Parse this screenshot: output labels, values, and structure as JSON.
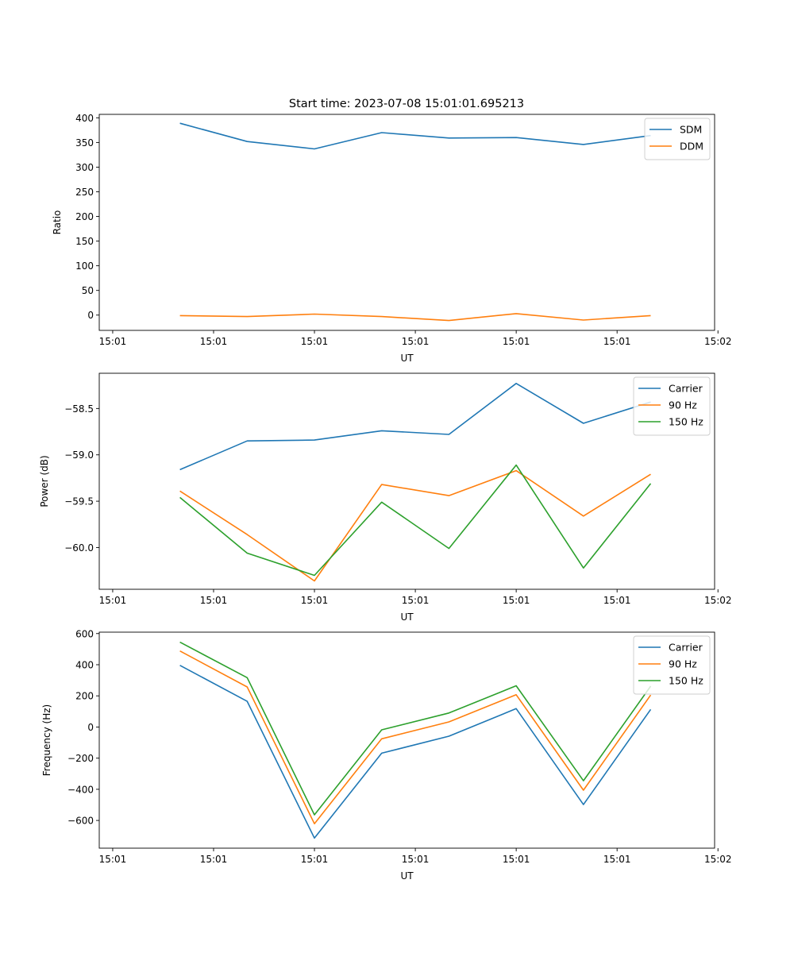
{
  "figure": {
    "title": "Start time: 2023-07-08 15:01:01.695213"
  },
  "chart_data": [
    {
      "type": "line",
      "title": "Start time: 2023-07-08 15:01:01.695213",
      "xlabel": "UT",
      "ylabel": "Ratio",
      "x_index": [
        1,
        2,
        3,
        4,
        5,
        6,
        7,
        8
      ],
      "x_range": [
        -0.2,
        8.95
      ],
      "x_ticks": [
        0,
        1.5,
        3,
        4.5,
        6,
        7.5,
        9
      ],
      "x_tick_labels": [
        "15:01",
        "15:01",
        "15:01",
        "15:01",
        "15:01",
        "15:01",
        "15:02"
      ],
      "ylim": [
        -31,
        407
      ],
      "y_ticks": [
        0,
        50,
        100,
        150,
        200,
        250,
        300,
        350,
        400
      ],
      "y_tick_labels": [
        "0",
        "50",
        "100",
        "150",
        "200",
        "250",
        "300",
        "350",
        "400"
      ],
      "grid": false,
      "legend": "top-right",
      "series": [
        {
          "name": "SDM",
          "color": "#1f77b4",
          "values": [
            389,
            352,
            337,
            370,
            359,
            360,
            346,
            364
          ]
        },
        {
          "name": "DDM",
          "color": "#ff7f0e",
          "values": [
            -1,
            -3,
            2,
            -3,
            -11,
            3,
            -10,
            -1
          ]
        }
      ]
    },
    {
      "type": "line",
      "xlabel": "UT",
      "ylabel": "Power (dB)",
      "x_index": [
        1,
        2,
        3,
        4,
        5,
        6,
        7,
        8
      ],
      "x_range": [
        -0.2,
        8.95
      ],
      "x_ticks": [
        0,
        1.5,
        3,
        4.5,
        6,
        7.5,
        9
      ],
      "x_tick_labels": [
        "15:01",
        "15:01",
        "15:01",
        "15:01",
        "15:01",
        "15:01",
        "15:02"
      ],
      "ylim": [
        -60.45,
        -58.12
      ],
      "y_ticks": [
        -60.0,
        -59.5,
        -59.0,
        -58.5
      ],
      "y_tick_labels": [
        "−60.0",
        "−59.5",
        "−59.0",
        "−58.5"
      ],
      "grid": false,
      "legend": "top-right",
      "series": [
        {
          "name": "Carrier",
          "color": "#1f77b4",
          "values": [
            -59.16,
            -58.85,
            -58.84,
            -58.74,
            -58.78,
            -58.23,
            -58.66,
            -58.43
          ]
        },
        {
          "name": "90 Hz",
          "color": "#ff7f0e",
          "values": [
            -59.39,
            -59.86,
            -60.36,
            -59.32,
            -59.44,
            -59.17,
            -59.66,
            -59.21
          ]
        },
        {
          "name": "150 Hz",
          "color": "#2ca02c",
          "values": [
            -59.46,
            -60.06,
            -60.3,
            -59.51,
            -60.01,
            -59.11,
            -60.22,
            -59.31
          ]
        }
      ]
    },
    {
      "type": "line",
      "xlabel": "UT",
      "ylabel": "Frequency (Hz)",
      "x_index": [
        1,
        2,
        3,
        4,
        5,
        6,
        7,
        8
      ],
      "x_range": [
        -0.2,
        8.95
      ],
      "x_ticks": [
        0,
        1.5,
        3,
        4.5,
        6,
        7.5,
        9
      ],
      "x_tick_labels": [
        "15:01",
        "15:01",
        "15:01",
        "15:01",
        "15:01",
        "15:01",
        "15:02"
      ],
      "ylim": [
        -778,
        609
      ],
      "y_ticks": [
        -600,
        -400,
        -200,
        0,
        200,
        400,
        600
      ],
      "y_tick_labels": [
        "−600",
        "−400",
        "−200",
        "0",
        "200",
        "400",
        "600"
      ],
      "grid": false,
      "legend": "top-right",
      "series": [
        {
          "name": "Carrier",
          "color": "#1f77b4",
          "values": [
            396,
            165,
            -713,
            -168,
            -59,
            118,
            -498,
            113
          ]
        },
        {
          "name": "90 Hz",
          "color": "#ff7f0e",
          "values": [
            488,
            257,
            -621,
            -76,
            33,
            207,
            -406,
            205
          ]
        },
        {
          "name": "150 Hz",
          "color": "#2ca02c",
          "values": [
            545,
            317,
            -564,
            -18,
            90,
            265,
            -345,
            262
          ]
        }
      ]
    }
  ]
}
